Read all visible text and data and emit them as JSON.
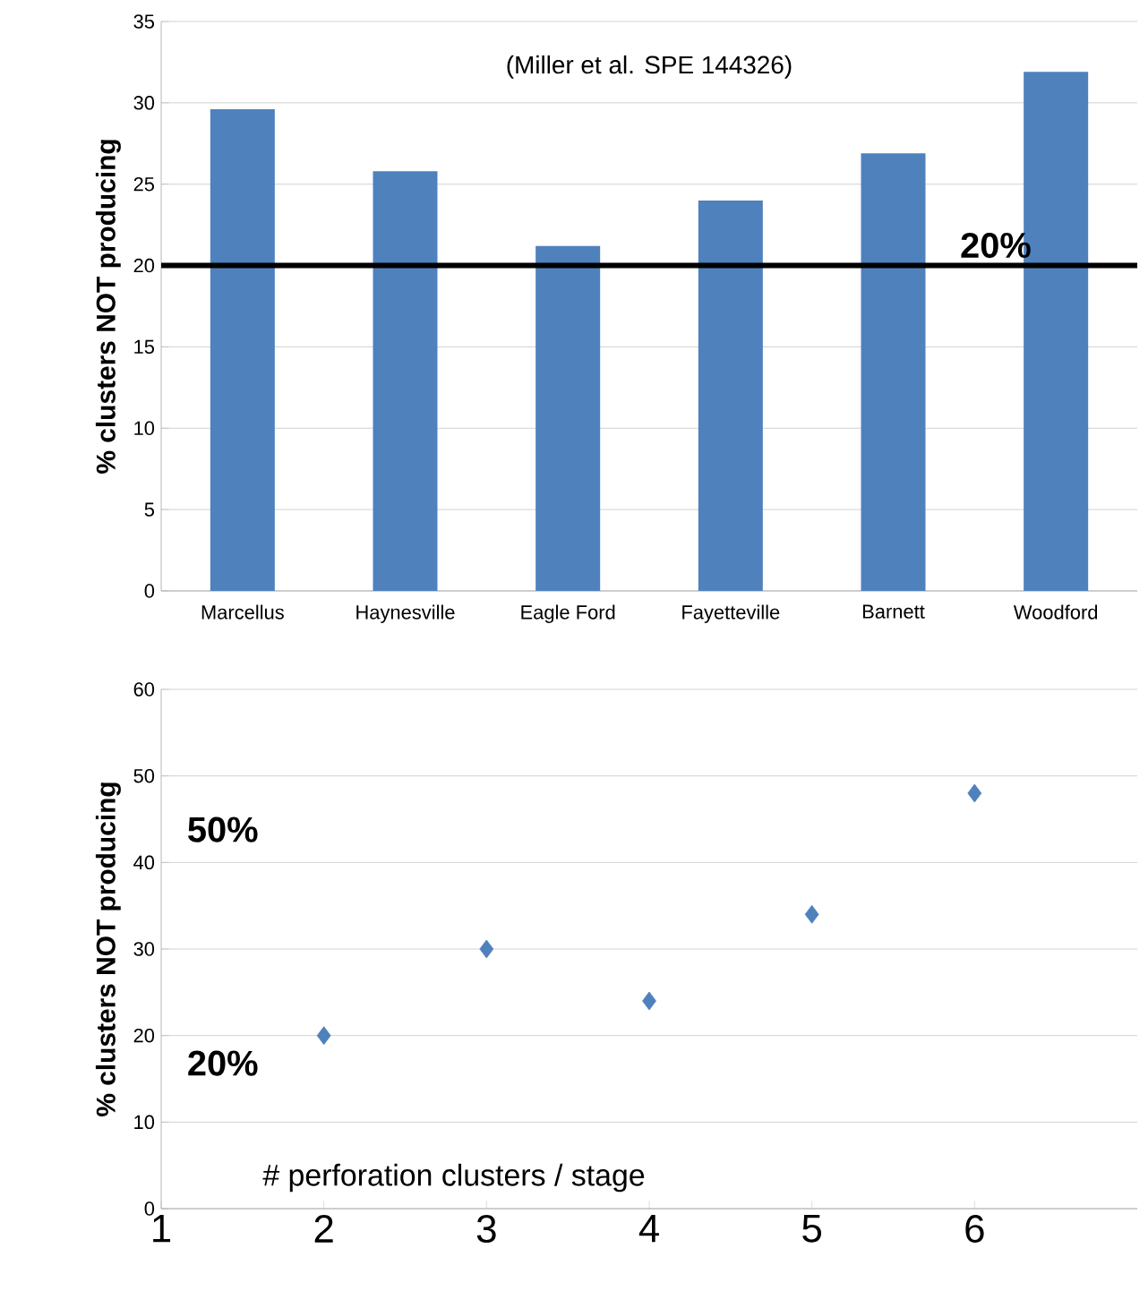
{
  "chart_data": [
    {
      "type": "bar",
      "ylabel": "% clusters NOT producing",
      "categories": [
        "Marcellus",
        "Haynesville",
        "Eagle Ford",
        "Fayetteville",
        "Barnett",
        "Woodford"
      ],
      "values": [
        29.6,
        25.8,
        21.2,
        24,
        26.9,
        31.9
      ],
      "color": "#4f81bd",
      "ylim": [
        0,
        35
      ],
      "yticks": [
        0,
        5,
        10,
        15,
        20,
        25,
        30,
        35
      ],
      "grid": "y",
      "ref_lines": [
        {
          "axis": "y",
          "value": 20,
          "label": "20%",
          "color": "#000000"
        }
      ],
      "annotations": [
        "(Miller et al. SPE 144326)"
      ]
    },
    {
      "type": "scatter",
      "ylabel": "% clusters NOT producing",
      "xlabel": "# perforation clusters / stage",
      "x": [
        2,
        3,
        4,
        5,
        6
      ],
      "values": [
        20,
        30,
        24,
        34,
        48
      ],
      "color": "#4f81bd",
      "marker": "diamond",
      "xlim": [
        1,
        7
      ],
      "xticks": [
        1,
        2,
        3,
        4,
        5,
        6
      ],
      "ylim": [
        0,
        60
      ],
      "yticks": [
        0,
        10,
        20,
        30,
        40,
        50,
        60
      ],
      "grid": "y",
      "annotations": [
        "50%",
        "20%"
      ]
    }
  ]
}
